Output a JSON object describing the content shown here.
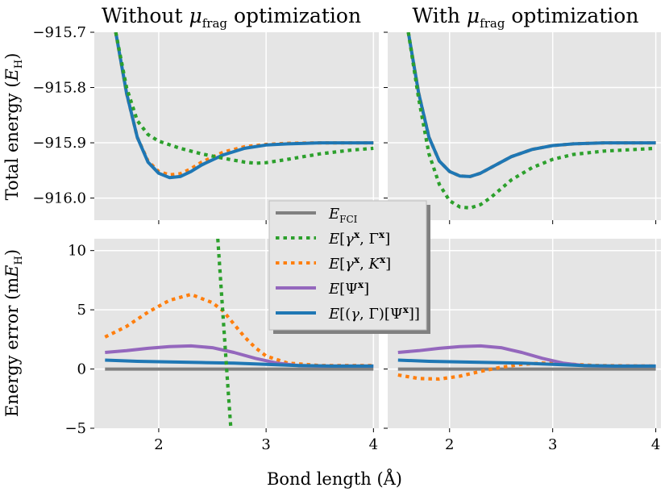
{
  "figure": {
    "x_label": "Bond length (Å)",
    "y_label_top": "Total energy (E_H)",
    "y_label_bottom": "Energy error (mE_H)",
    "colors": {
      "panel_bg": "#e5e5e5",
      "grid": "#ffffff",
      "fci": "#808080",
      "gamma_Gamma": "#2ca02c",
      "gamma_K": "#ff7f0e",
      "psi": "#9467bd",
      "gammaGamma_psi": "#1f77b4"
    }
  },
  "legend": {
    "entries": [
      {
        "key": "fci",
        "label": "E_FCI",
        "style": "solid"
      },
      {
        "key": "gamma_Gamma",
        "label": "E[γˣ, Γˣ]",
        "style": "dotted"
      },
      {
        "key": "gamma_K",
        "label": "E[γˣ, Kˣ]",
        "style": "dotted"
      },
      {
        "key": "psi",
        "label": "E[Ψˣ]",
        "style": "solid"
      },
      {
        "key": "gammaGamma_psi",
        "label": "E[(γ, Γ)[Ψˣ]]",
        "style": "solid"
      }
    ]
  },
  "chart_data": [
    {
      "type": "line",
      "id": "top-left",
      "title": "Without μ_frag optimization",
      "xlim": [
        1.4,
        4.05
      ],
      "ylim": [
        -916.04,
        -915.7
      ],
      "xticks": [
        2,
        3,
        4
      ],
      "yticks": [
        -915.7,
        -915.8,
        -915.9,
        -916.0
      ],
      "ytick_labels": [
        "−915.7",
        "−915.8",
        "−915.9",
        "−916.0"
      ],
      "grid": true,
      "series": [
        {
          "key": "gammaGamma_psi",
          "x": [
            1.6,
            1.7,
            1.8,
            1.9,
            2.0,
            2.1,
            2.2,
            2.3,
            2.4,
            2.6,
            2.8,
            3.0,
            3.2,
            3.5,
            3.8,
            4.0
          ],
          "y": [
            -915.7,
            -915.81,
            -915.89,
            -915.935,
            -915.955,
            -915.963,
            -915.961,
            -915.952,
            -915.94,
            -915.922,
            -915.91,
            -915.904,
            -915.902,
            -915.9,
            -915.9,
            -915.9
          ]
        },
        {
          "key": "gamma_K",
          "x": [
            1.6,
            1.7,
            1.8,
            1.9,
            2.0,
            2.1,
            2.2,
            2.3,
            2.4,
            2.6,
            2.8,
            3.0,
            3.2,
            3.5,
            3.8,
            4.0
          ],
          "y": [
            -915.7,
            -915.81,
            -915.89,
            -915.933,
            -915.952,
            -915.958,
            -915.956,
            -915.947,
            -915.935,
            -915.917,
            -915.907,
            -915.903,
            -915.901,
            -915.9,
            -915.9,
            -915.9
          ]
        },
        {
          "key": "gamma_Gamma",
          "x": [
            1.6,
            1.7,
            1.8,
            1.9,
            2.0,
            2.2,
            2.4,
            2.6,
            2.8,
            2.9,
            3.0,
            3.2,
            3.5,
            3.8,
            4.0
          ],
          "y": [
            -915.7,
            -915.8,
            -915.86,
            -915.885,
            -915.897,
            -915.91,
            -915.92,
            -915.928,
            -915.935,
            -915.937,
            -915.936,
            -915.93,
            -915.92,
            -915.913,
            -915.91
          ]
        }
      ]
    },
    {
      "type": "line",
      "id": "top-right",
      "title": "With μ_frag optimization",
      "xlim": [
        1.4,
        4.05
      ],
      "ylim": [
        -916.04,
        -915.7
      ],
      "xticks": [
        2,
        3,
        4
      ],
      "yticks": [
        -915.7,
        -915.8,
        -915.9,
        -916.0
      ],
      "grid": true,
      "series": [
        {
          "key": "gammaGamma_psi",
          "x": [
            1.6,
            1.7,
            1.8,
            1.9,
            2.0,
            2.1,
            2.2,
            2.3,
            2.4,
            2.6,
            2.8,
            3.0,
            3.2,
            3.5,
            3.8,
            4.0
          ],
          "y": [
            -915.7,
            -915.81,
            -915.89,
            -915.933,
            -915.952,
            -915.96,
            -915.961,
            -915.955,
            -915.945,
            -915.925,
            -915.912,
            -915.905,
            -915.902,
            -915.9,
            -915.9,
            -915.9
          ]
        },
        {
          "key": "gamma_K",
          "x": [
            1.6,
            1.7,
            1.8,
            1.9,
            2.0,
            2.1,
            2.2,
            2.3,
            2.4,
            2.6,
            2.8,
            3.0,
            3.2,
            3.5,
            3.8,
            4.0
          ],
          "y": [
            -915.7,
            -915.81,
            -915.89,
            -915.933,
            -915.952,
            -915.96,
            -915.961,
            -915.955,
            -915.945,
            -915.925,
            -915.912,
            -915.905,
            -915.902,
            -915.9,
            -915.9,
            -915.9
          ]
        },
        {
          "key": "gamma_Gamma",
          "x": [
            1.6,
            1.7,
            1.8,
            1.9,
            2.0,
            2.1,
            2.2,
            2.3,
            2.4,
            2.6,
            2.8,
            3.0,
            3.2,
            3.5,
            3.8,
            4.0
          ],
          "y": [
            -915.7,
            -915.82,
            -915.92,
            -915.975,
            -916.005,
            -916.016,
            -916.018,
            -916.012,
            -915.999,
            -915.967,
            -915.945,
            -915.93,
            -915.921,
            -915.915,
            -915.912,
            -915.91
          ]
        }
      ]
    },
    {
      "type": "line",
      "id": "bottom-left",
      "xlim": [
        1.4,
        4.05
      ],
      "ylim": [
        -5,
        11
      ],
      "xticks": [
        2,
        3,
        4
      ],
      "xtick_labels": [
        "2",
        "3",
        "4"
      ],
      "yticks": [
        -5,
        0,
        5,
        10
      ],
      "ytick_labels": [
        "−5",
        "0",
        "5",
        "10"
      ],
      "grid": true,
      "series": [
        {
          "key": "fci",
          "x": [
            1.5,
            4.0
          ],
          "y": [
            0,
            0
          ]
        },
        {
          "key": "gamma_K",
          "x": [
            1.5,
            1.7,
            1.9,
            2.1,
            2.3,
            2.5,
            2.6,
            2.7,
            2.8,
            2.9,
            3.0,
            3.2,
            3.5,
            4.0
          ],
          "y": [
            2.7,
            3.6,
            4.8,
            5.8,
            6.3,
            5.6,
            4.9,
            3.8,
            2.7,
            1.8,
            1.1,
            0.5,
            0.3,
            0.3
          ]
        },
        {
          "key": "psi",
          "x": [
            1.5,
            1.7,
            1.9,
            2.1,
            2.3,
            2.5,
            2.7,
            2.9,
            3.1,
            3.3,
            3.5,
            4.0
          ],
          "y": [
            1.4,
            1.55,
            1.75,
            1.9,
            1.95,
            1.8,
            1.4,
            0.9,
            0.5,
            0.3,
            0.25,
            0.25
          ]
        },
        {
          "key": "gammaGamma_psi",
          "x": [
            1.5,
            1.8,
            2.1,
            2.4,
            2.7,
            3.0,
            3.3,
            3.6,
            4.0
          ],
          "y": [
            0.75,
            0.65,
            0.6,
            0.55,
            0.5,
            0.4,
            0.3,
            0.25,
            0.25
          ]
        },
        {
          "key": "gamma_Gamma",
          "x": [
            2.55,
            2.58,
            2.61,
            2.64,
            2.67
          ],
          "y": [
            11,
            7,
            3,
            -1,
            -4.8
          ]
        }
      ]
    },
    {
      "type": "line",
      "id": "bottom-right",
      "xlim": [
        1.4,
        4.05
      ],
      "ylim": [
        -5,
        11
      ],
      "xticks": [
        2,
        3,
        4
      ],
      "xtick_labels": [
        "2",
        "3",
        "4"
      ],
      "yticks": [
        -5,
        0,
        5,
        10
      ],
      "grid": true,
      "series": [
        {
          "key": "fci",
          "x": [
            1.5,
            4.0
          ],
          "y": [
            0,
            0
          ]
        },
        {
          "key": "gamma_K",
          "x": [
            1.5,
            1.7,
            1.9,
            2.1,
            2.3,
            2.5,
            2.7,
            2.9,
            3.1,
            3.4,
            4.0
          ],
          "y": [
            -0.5,
            -0.8,
            -0.85,
            -0.6,
            -0.2,
            0.15,
            0.4,
            0.5,
            0.45,
            0.3,
            0.25
          ]
        },
        {
          "key": "psi",
          "x": [
            1.5,
            1.7,
            1.9,
            2.1,
            2.3,
            2.5,
            2.7,
            2.9,
            3.1,
            3.3,
            3.5,
            4.0
          ],
          "y": [
            1.4,
            1.55,
            1.75,
            1.9,
            1.95,
            1.8,
            1.4,
            0.9,
            0.5,
            0.3,
            0.25,
            0.25
          ]
        },
        {
          "key": "gammaGamma_psi",
          "x": [
            1.5,
            1.8,
            2.1,
            2.4,
            2.7,
            3.0,
            3.3,
            3.6,
            4.0
          ],
          "y": [
            0.75,
            0.65,
            0.6,
            0.55,
            0.5,
            0.4,
            0.3,
            0.25,
            0.25
          ]
        }
      ]
    }
  ]
}
